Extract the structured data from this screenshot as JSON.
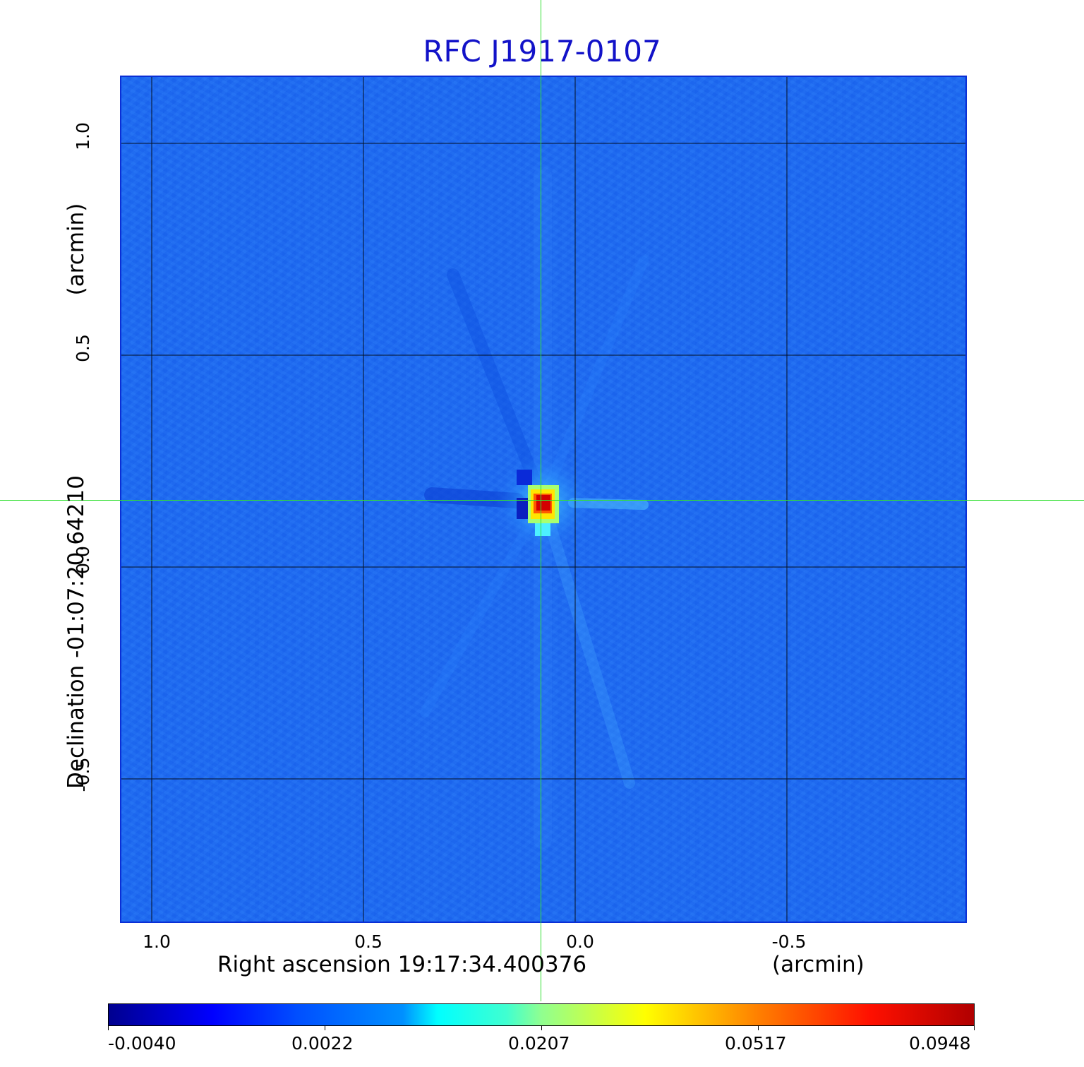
{
  "title": "RFC J1917-0107",
  "x_axis": {
    "label": "Right ascension  19:17:34.400376",
    "unit": "(arcmin)",
    "ticks": [
      "1.0",
      "0.5",
      "0.0",
      "-0.5"
    ]
  },
  "y_axis": {
    "label": "Declination  -01:07:20.64210",
    "unit": "(arcmin)",
    "ticks": [
      "1.0",
      "0.5",
      "0.0",
      "-0.5"
    ]
  },
  "colorbar": {
    "colormap": "jet",
    "ticks": [
      "-0.0040",
      "0.0022",
      "0.0207",
      "0.0517",
      "0.0948"
    ]
  },
  "colors": {
    "title": "#1212c8",
    "background_map": "#1e6bf0",
    "crosshair": "#33e033",
    "grid": "#000000"
  }
}
